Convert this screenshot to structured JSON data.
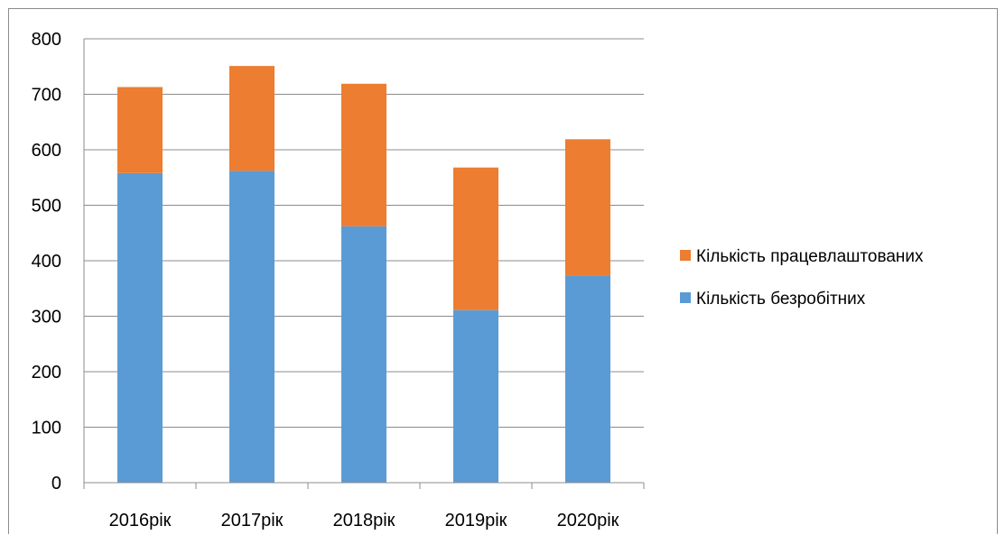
{
  "chart_data": {
    "type": "bar",
    "stacked": true,
    "categories": [
      "2016рік",
      "2017рік",
      "2018рік",
      "2019рік",
      "2020рік"
    ],
    "series": [
      {
        "name": "Кількість безробітних",
        "color": "#5b9bd5",
        "values": [
          558,
          562,
          462,
          311,
          373
        ]
      },
      {
        "name": "Кількість працевлаштованих",
        "color": "#ed7d31",
        "values": [
          155,
          189,
          257,
          257,
          246
        ]
      }
    ],
    "ylim": [
      0,
      800
    ],
    "yticks": [
      0,
      100,
      200,
      300,
      400,
      500,
      600,
      700,
      800
    ],
    "grid": true,
    "legend_position": "right",
    "legend_order": [
      "Кількість працевлаштованих",
      "Кількість безробітних"
    ]
  }
}
